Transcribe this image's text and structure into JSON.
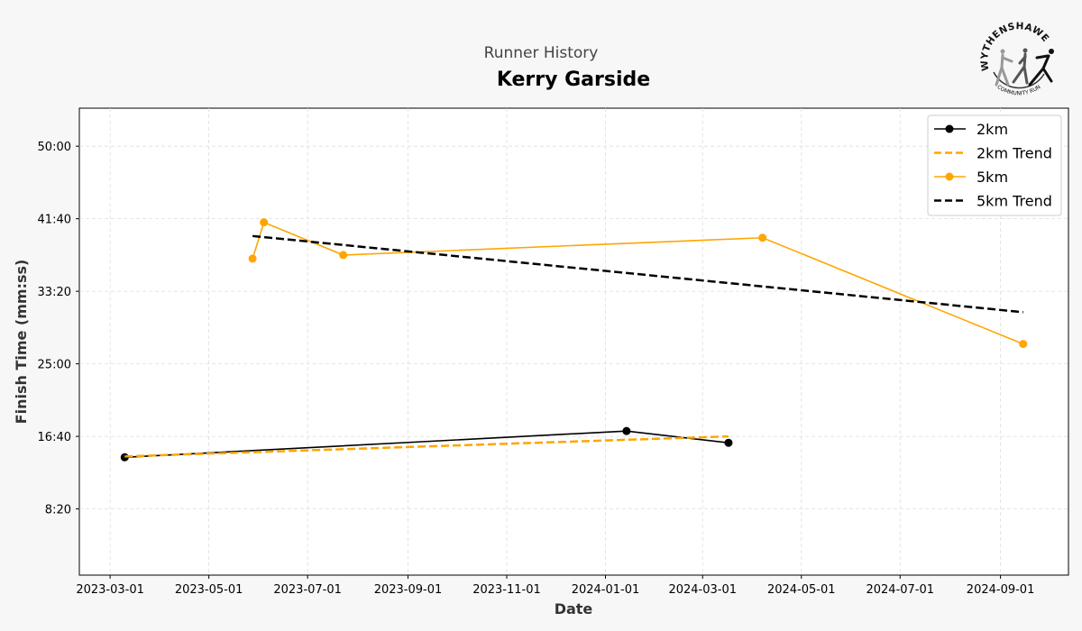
{
  "chart_data": {
    "type": "line",
    "suptitle": "Runner History",
    "title": "Kerry Garside",
    "xlabel": "Date",
    "ylabel": "Finish Time (mm:ss)",
    "xlim": [
      "2023-02-10",
      "2024-10-13"
    ],
    "ylim_seconds": [
      44,
      3262
    ],
    "grid": true,
    "legend_position": "top-right",
    "x_ticks": [
      "2023-03-01",
      "2023-05-01",
      "2023-07-01",
      "2023-09-01",
      "2023-11-01",
      "2024-01-01",
      "2024-03-01",
      "2024-05-01",
      "2024-07-01",
      "2024-09-01"
    ],
    "y_ticks": [
      {
        "seconds": 500,
        "label": "8:20"
      },
      {
        "seconds": 1000,
        "label": "16:40"
      },
      {
        "seconds": 1500,
        "label": "25:00"
      },
      {
        "seconds": 2000,
        "label": "33:20"
      },
      {
        "seconds": 2500,
        "label": "41:40"
      },
      {
        "seconds": 3000,
        "label": "50:00"
      }
    ],
    "series": [
      {
        "name": "2km",
        "style": "solid",
        "marker": true,
        "color": "#000000",
        "points": [
          {
            "date": "2023-03-10",
            "seconds": 856
          },
          {
            "date": "2024-01-14",
            "seconds": 1037
          },
          {
            "date": "2024-03-17",
            "seconds": 956
          }
        ]
      },
      {
        "name": "2km Trend",
        "style": "dashed",
        "marker": false,
        "color": "#FFA500",
        "points": [
          {
            "date": "2023-03-10",
            "seconds": 862
          },
          {
            "date": "2024-03-17",
            "seconds": 1000
          }
        ]
      },
      {
        "name": "5km",
        "style": "solid",
        "marker": true,
        "color": "#FFA500",
        "points": [
          {
            "date": "2023-05-28",
            "seconds": 2225
          },
          {
            "date": "2023-06-04",
            "seconds": 2475
          },
          {
            "date": "2023-07-23",
            "seconds": 2250
          },
          {
            "date": "2024-04-07",
            "seconds": 2369
          },
          {
            "date": "2024-09-15",
            "seconds": 1637
          }
        ]
      },
      {
        "name": "5km Trend",
        "style": "dashed",
        "marker": false,
        "color": "#000000",
        "points": [
          {
            "date": "2023-05-28",
            "seconds": 2381
          },
          {
            "date": "2024-09-15",
            "seconds": 1856
          }
        ]
      }
    ]
  },
  "logo": {
    "top_text": "WYTHENSHAWE",
    "bottom_text": "COMMUNITY RUN"
  }
}
